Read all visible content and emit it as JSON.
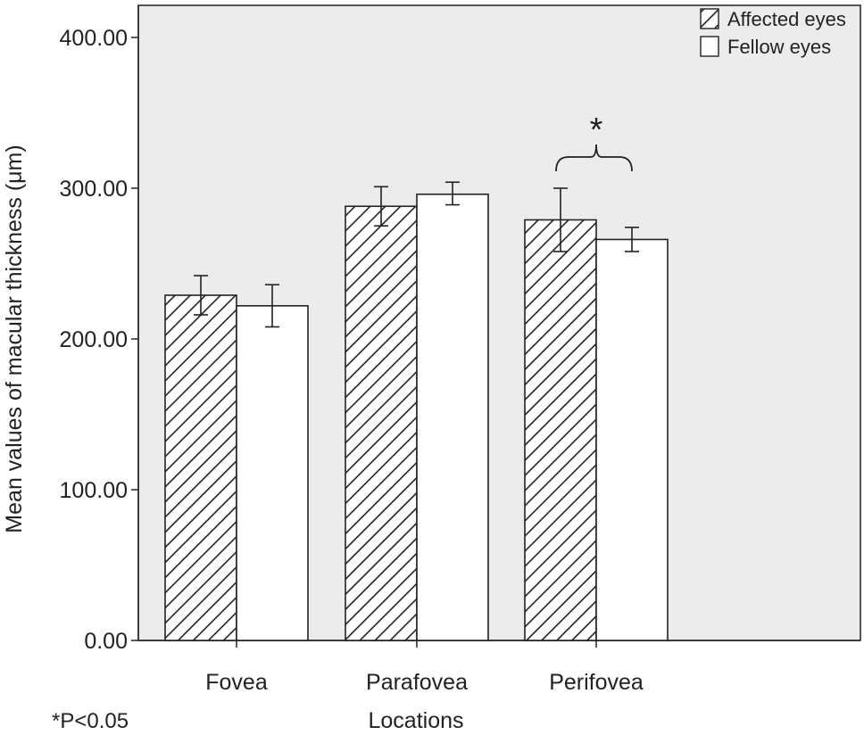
{
  "chart_data": {
    "type": "bar",
    "categories": [
      "Fovea",
      "Parafovea",
      "Perifovea"
    ],
    "series": [
      {
        "name": "Affected eyes",
        "values": [
          229,
          288,
          279
        ],
        "error": [
          [
            216,
            242
          ],
          [
            275,
            301
          ],
          [
            258,
            300
          ]
        ],
        "pattern": "diagonal-hatch"
      },
      {
        "name": "Fellow eyes",
        "values": [
          222,
          296,
          266
        ],
        "error": [
          [
            208,
            236
          ],
          [
            289,
            304
          ],
          [
            258,
            274
          ]
        ],
        "pattern": "solid-white"
      }
    ],
    "xlabel": "Locations",
    "ylabel": "Mean values of macular thickness (μm)",
    "ylim": [
      0,
      420
    ],
    "yticks": [
      0,
      100,
      200,
      300,
      400
    ],
    "ytick_labels": [
      "0.00",
      "100.00",
      "200.00",
      "300.00",
      "400.00"
    ],
    "grid": false,
    "legend_position": "top-right",
    "annotations": [
      {
        "text": "*",
        "category": "Perifovea",
        "type": "significance-bracket"
      }
    ],
    "footnote": "*P<0.05"
  },
  "colors": {
    "plot_background": "#ececec",
    "bar_outline": "#222222",
    "hatch": "#222222",
    "fellow_fill": "#ffffff"
  }
}
